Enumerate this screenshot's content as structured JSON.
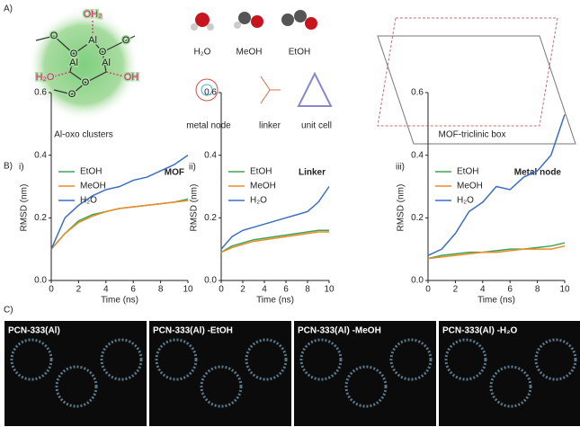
{
  "panel_a": {
    "label": "A)",
    "cluster_caption": "Al-oxo clusters",
    "cluster_atoms": [
      "OH₂",
      "Al",
      "Al",
      "Al",
      "O",
      "O",
      "O",
      "O",
      "O",
      "O",
      "H₂O",
      "OH"
    ],
    "molecules": [
      "H₂O",
      "MeOH",
      "EtOH"
    ],
    "components": [
      "metal node",
      "linker",
      "unit cell"
    ],
    "box_caption": "MOF-triclinic box"
  },
  "panel_b": {
    "label": "B)"
  },
  "panel_c": {
    "label": "C)",
    "images": [
      "PCN-333(Al)",
      "PCN-333(Al) -EtOH",
      "PCN-333(Al) -MeOH",
      "PCN-333(Al) -H₂O"
    ]
  },
  "chart_data": [
    {
      "type": "line",
      "panel": "i)",
      "title": "MOF",
      "xlabel": "Time (ns)",
      "ylabel": "RMSD (nm)",
      "x": [
        0,
        1,
        2,
        3,
        4,
        5,
        6,
        7,
        8,
        9,
        10
      ],
      "xlim": [
        0,
        10
      ],
      "xticks": [
        0,
        2,
        4,
        6,
        8,
        10
      ],
      "ylim": [
        0,
        0.6
      ],
      "yticks": [
        {
          "value": 0,
          "label": "0.0"
        },
        0.2,
        0.4,
        0.6
      ],
      "series": [
        {
          "name": "EtOH",
          "color": "#3aa655",
          "values": [
            0.1,
            0.15,
            0.19,
            0.21,
            0.22,
            0.23,
            0.235,
            0.24,
            0.245,
            0.25,
            0.26
          ]
        },
        {
          "name": "MeOH",
          "color": "#f08a24",
          "values": [
            0.1,
            0.15,
            0.185,
            0.205,
            0.22,
            0.23,
            0.235,
            0.24,
            0.245,
            0.25,
            0.255
          ]
        },
        {
          "name": "H₂O",
          "color": "#3a6fc4",
          "values": [
            0.1,
            0.2,
            0.24,
            0.27,
            0.29,
            0.3,
            0.32,
            0.33,
            0.35,
            0.37,
            0.4
          ]
        }
      ]
    },
    {
      "type": "line",
      "panel": "ii)",
      "title": "Linker",
      "xlabel": "Time (ns)",
      "ylabel": "RMSD (nm)",
      "x": [
        0,
        1,
        2,
        3,
        4,
        5,
        6,
        7,
        8,
        9,
        10
      ],
      "xlim": [
        0,
        10
      ],
      "xticks": [
        0,
        2,
        4,
        6,
        8,
        10
      ],
      "ylim": [
        0,
        0.6
      ],
      "yticks": [
        {
          "value": 0,
          "label": "0.0"
        },
        0.2,
        0.4,
        0.6
      ],
      "series": [
        {
          "name": "EtOH",
          "color": "#3aa655",
          "values": [
            0.09,
            0.11,
            0.12,
            0.13,
            0.135,
            0.14,
            0.145,
            0.15,
            0.155,
            0.16,
            0.16
          ]
        },
        {
          "name": "MeOH",
          "color": "#f08a24",
          "values": [
            0.09,
            0.105,
            0.115,
            0.125,
            0.13,
            0.135,
            0.14,
            0.145,
            0.15,
            0.155,
            0.155
          ]
        },
        {
          "name": "H₂O",
          "color": "#3a6fc4",
          "values": [
            0.1,
            0.14,
            0.16,
            0.17,
            0.18,
            0.19,
            0.2,
            0.21,
            0.22,
            0.25,
            0.3
          ]
        }
      ]
    },
    {
      "type": "line",
      "panel": "iii)",
      "title": "Metal node",
      "xlabel": "Time (ns)",
      "ylabel": "RMSD (nm)",
      "x": [
        0,
        1,
        2,
        3,
        4,
        5,
        6,
        7,
        8,
        9,
        10
      ],
      "xlim": [
        0,
        10
      ],
      "xticks": [
        0,
        2,
        4,
        6,
        8,
        10
      ],
      "ylim": [
        0,
        0.6
      ],
      "yticks": [
        {
          "value": 0,
          "label": "0.0"
        },
        0.2,
        0.4,
        0.6
      ],
      "series": [
        {
          "name": "EtOH",
          "color": "#3aa655",
          "values": [
            0.07,
            0.08,
            0.085,
            0.09,
            0.09,
            0.095,
            0.1,
            0.1,
            0.105,
            0.11,
            0.12
          ]
        },
        {
          "name": "MeOH",
          "color": "#f08a24",
          "values": [
            0.07,
            0.075,
            0.08,
            0.085,
            0.09,
            0.09,
            0.095,
            0.1,
            0.1,
            0.1,
            0.11
          ]
        },
        {
          "name": "H₂O",
          "color": "#3a6fc4",
          "values": [
            0.08,
            0.1,
            0.15,
            0.22,
            0.25,
            0.3,
            0.29,
            0.33,
            0.35,
            0.4,
            0.53
          ]
        }
      ]
    }
  ]
}
